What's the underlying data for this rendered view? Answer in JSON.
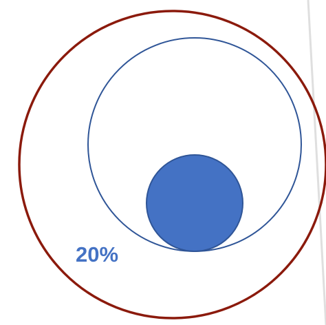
{
  "diagram": {
    "label": "20%",
    "colors": {
      "outer_circle": "#8b1a0c",
      "inner_circle": "#2f5597",
      "filled_circle_fill": "#4472c4",
      "filled_circle_stroke": "#2f5597",
      "label": "#4472c4",
      "page_shadow": "#d8d8d8"
    }
  }
}
